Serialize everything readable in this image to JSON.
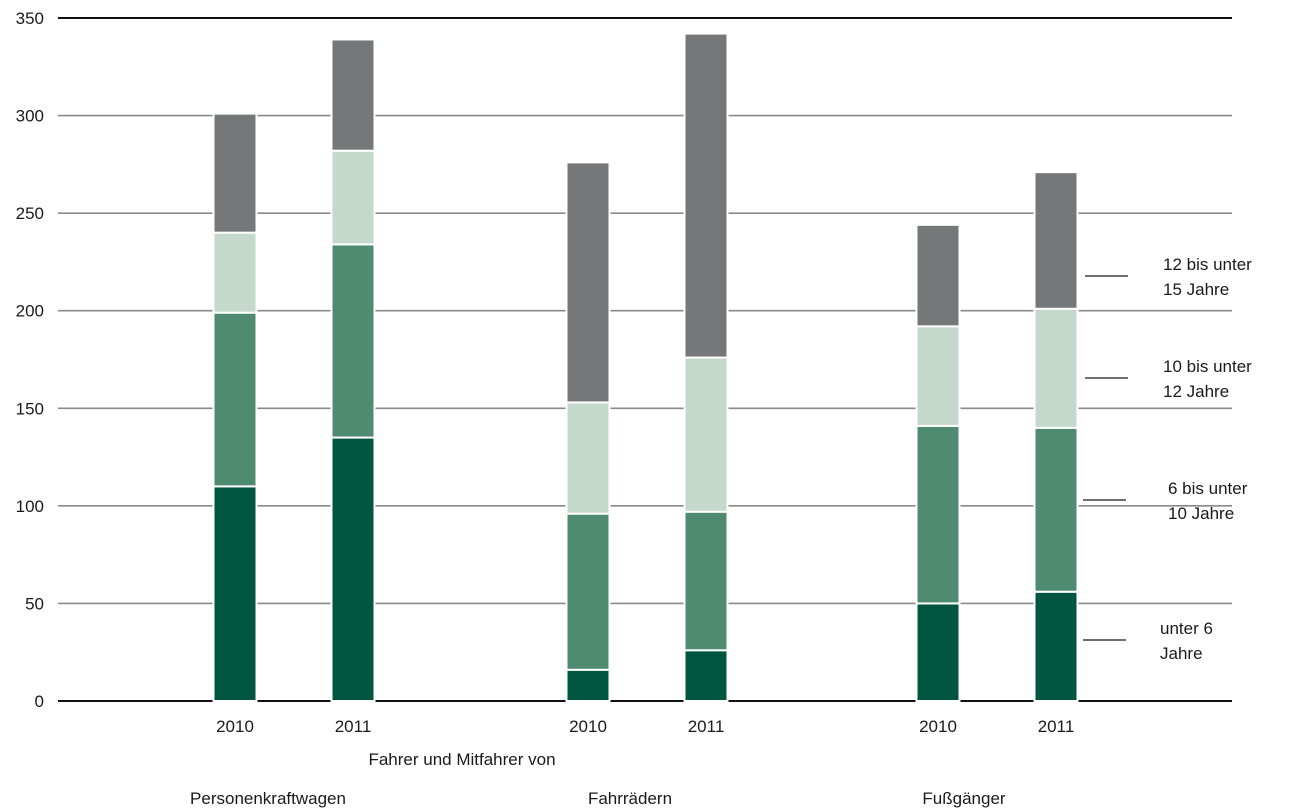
{
  "chart_data": {
    "type": "bar",
    "stacked": true,
    "title": "",
    "xlabel": "",
    "ylabel": "",
    "ylim": [
      0,
      350
    ],
    "yticks": [
      0,
      50,
      100,
      150,
      200,
      250,
      300,
      350
    ],
    "grid": true,
    "legend_position": "right",
    "caption": "Fahrer und Mitfahrer von",
    "groups": [
      "Personenkraftwagen",
      "Fahrrädern",
      "Fußgänger"
    ],
    "categories": [
      "2010",
      "2011",
      "2010",
      "2011",
      "2010",
      "2011"
    ],
    "category_group": [
      0,
      0,
      1,
      1,
      2,
      2
    ],
    "series": [
      {
        "name": "unter 6 Jahre",
        "label_lines": [
          "unter 6",
          "Jahre"
        ],
        "color": "#005640",
        "values": [
          110,
          135,
          16,
          26,
          50,
          56
        ]
      },
      {
        "name": "6 bis unter 10 Jahre",
        "label_lines": [
          "6 bis unter",
          "10 Jahre"
        ],
        "color": "#4f8b70",
        "values": [
          89,
          99,
          80,
          71,
          91,
          84
        ]
      },
      {
        "name": "10 bis unter 12 Jahre",
        "label_lines": [
          "10 bis unter",
          "12 Jahre"
        ],
        "color": "#c4d8cc",
        "values": [
          41,
          48,
          57,
          79,
          51,
          61
        ]
      },
      {
        "name": "12 bis unter 15 Jahre",
        "label_lines": [
          "12 bis unter",
          "15 Jahre"
        ],
        "color": "#767778",
        "values": [
          61,
          57,
          123,
          166,
          52,
          70
        ]
      }
    ]
  }
}
